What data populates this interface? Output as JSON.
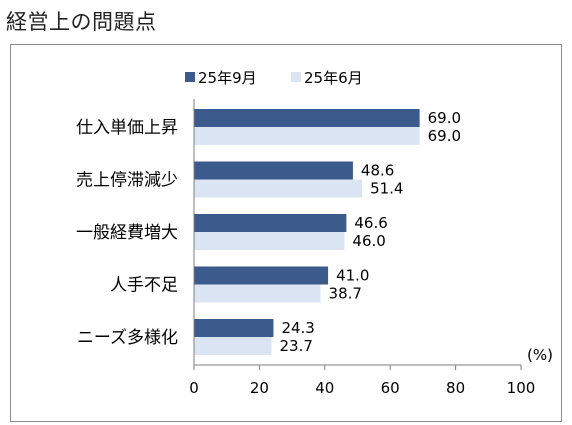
{
  "title": "経営上の問題点",
  "chart_data": {
    "type": "bar",
    "orientation": "horizontal",
    "categories": [
      "仕入単価上昇",
      "売上停滞減少",
      "一般経費増大",
      "人手不足",
      "ニーズ多様化"
    ],
    "series": [
      {
        "name": "25年9月",
        "values": [
          69.0,
          48.6,
          46.6,
          41.0,
          24.3
        ],
        "color": "#3b5b8c"
      },
      {
        "name": "25年6月",
        "values": [
          69.0,
          51.4,
          46.0,
          38.7,
          23.7
        ],
        "color": "#dbe4f3"
      }
    ],
    "value_labels_1": [
      "69.0",
      "48.6",
      "46.6",
      "41.0",
      "24.3"
    ],
    "value_labels_2": [
      "69.0",
      "51.4",
      "46.0",
      "38.7",
      "23.7"
    ],
    "xlim": [
      0,
      100
    ],
    "xticks": [
      0,
      20,
      40,
      60,
      80,
      100
    ],
    "xtick_labels": [
      "0",
      "20",
      "40",
      "60",
      "80",
      "100"
    ],
    "unit_label": "(%)",
    "legend_position": "top",
    "grid": false
  }
}
